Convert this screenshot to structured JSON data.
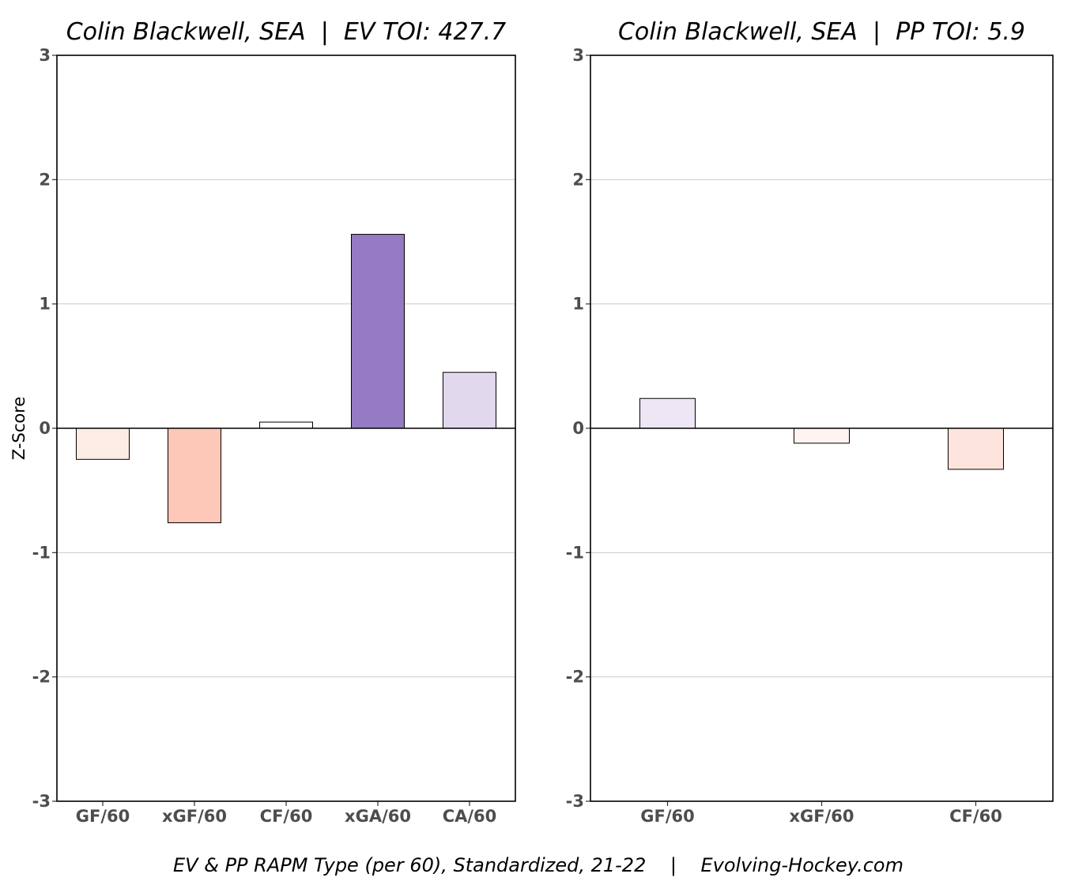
{
  "caption": "EV & PP RAPM Type (per 60), Standardized, 21-22    |    Evolving-Hockey.com",
  "ylabel": "Z-Score",
  "chart_data": [
    {
      "type": "bar",
      "title": "Colin Blackwell, SEA  |  EV TOI: 427.7",
      "categories": [
        "GF/60",
        "xGF/60",
        "CF/60",
        "xGA/60",
        "CA/60"
      ],
      "values": [
        -0.25,
        -0.76,
        0.05,
        1.56,
        0.45
      ],
      "colors": [
        "#fdece6",
        "#fdc8b8",
        "#ffffff",
        "#957bc3",
        "#e1d8ee"
      ],
      "ylabel": "Z-Score",
      "ylim": [
        -3,
        3
      ],
      "yticks": [
        -3,
        -2,
        -1,
        0,
        1,
        2,
        3
      ],
      "grid": true
    },
    {
      "type": "bar",
      "title": "Colin Blackwell, SEA  |  PP TOI: 5.9",
      "categories": [
        "GF/60",
        "xGF/60",
        "CF/60"
      ],
      "values": [
        0.24,
        -0.12,
        -0.33
      ],
      "colors": [
        "#ede6f4",
        "#fff4f1",
        "#fde5de"
      ],
      "ylabel": "",
      "ylim": [
        -3,
        3
      ],
      "yticks": [
        -3,
        -2,
        -1,
        0,
        1,
        2,
        3
      ],
      "grid": true
    }
  ]
}
